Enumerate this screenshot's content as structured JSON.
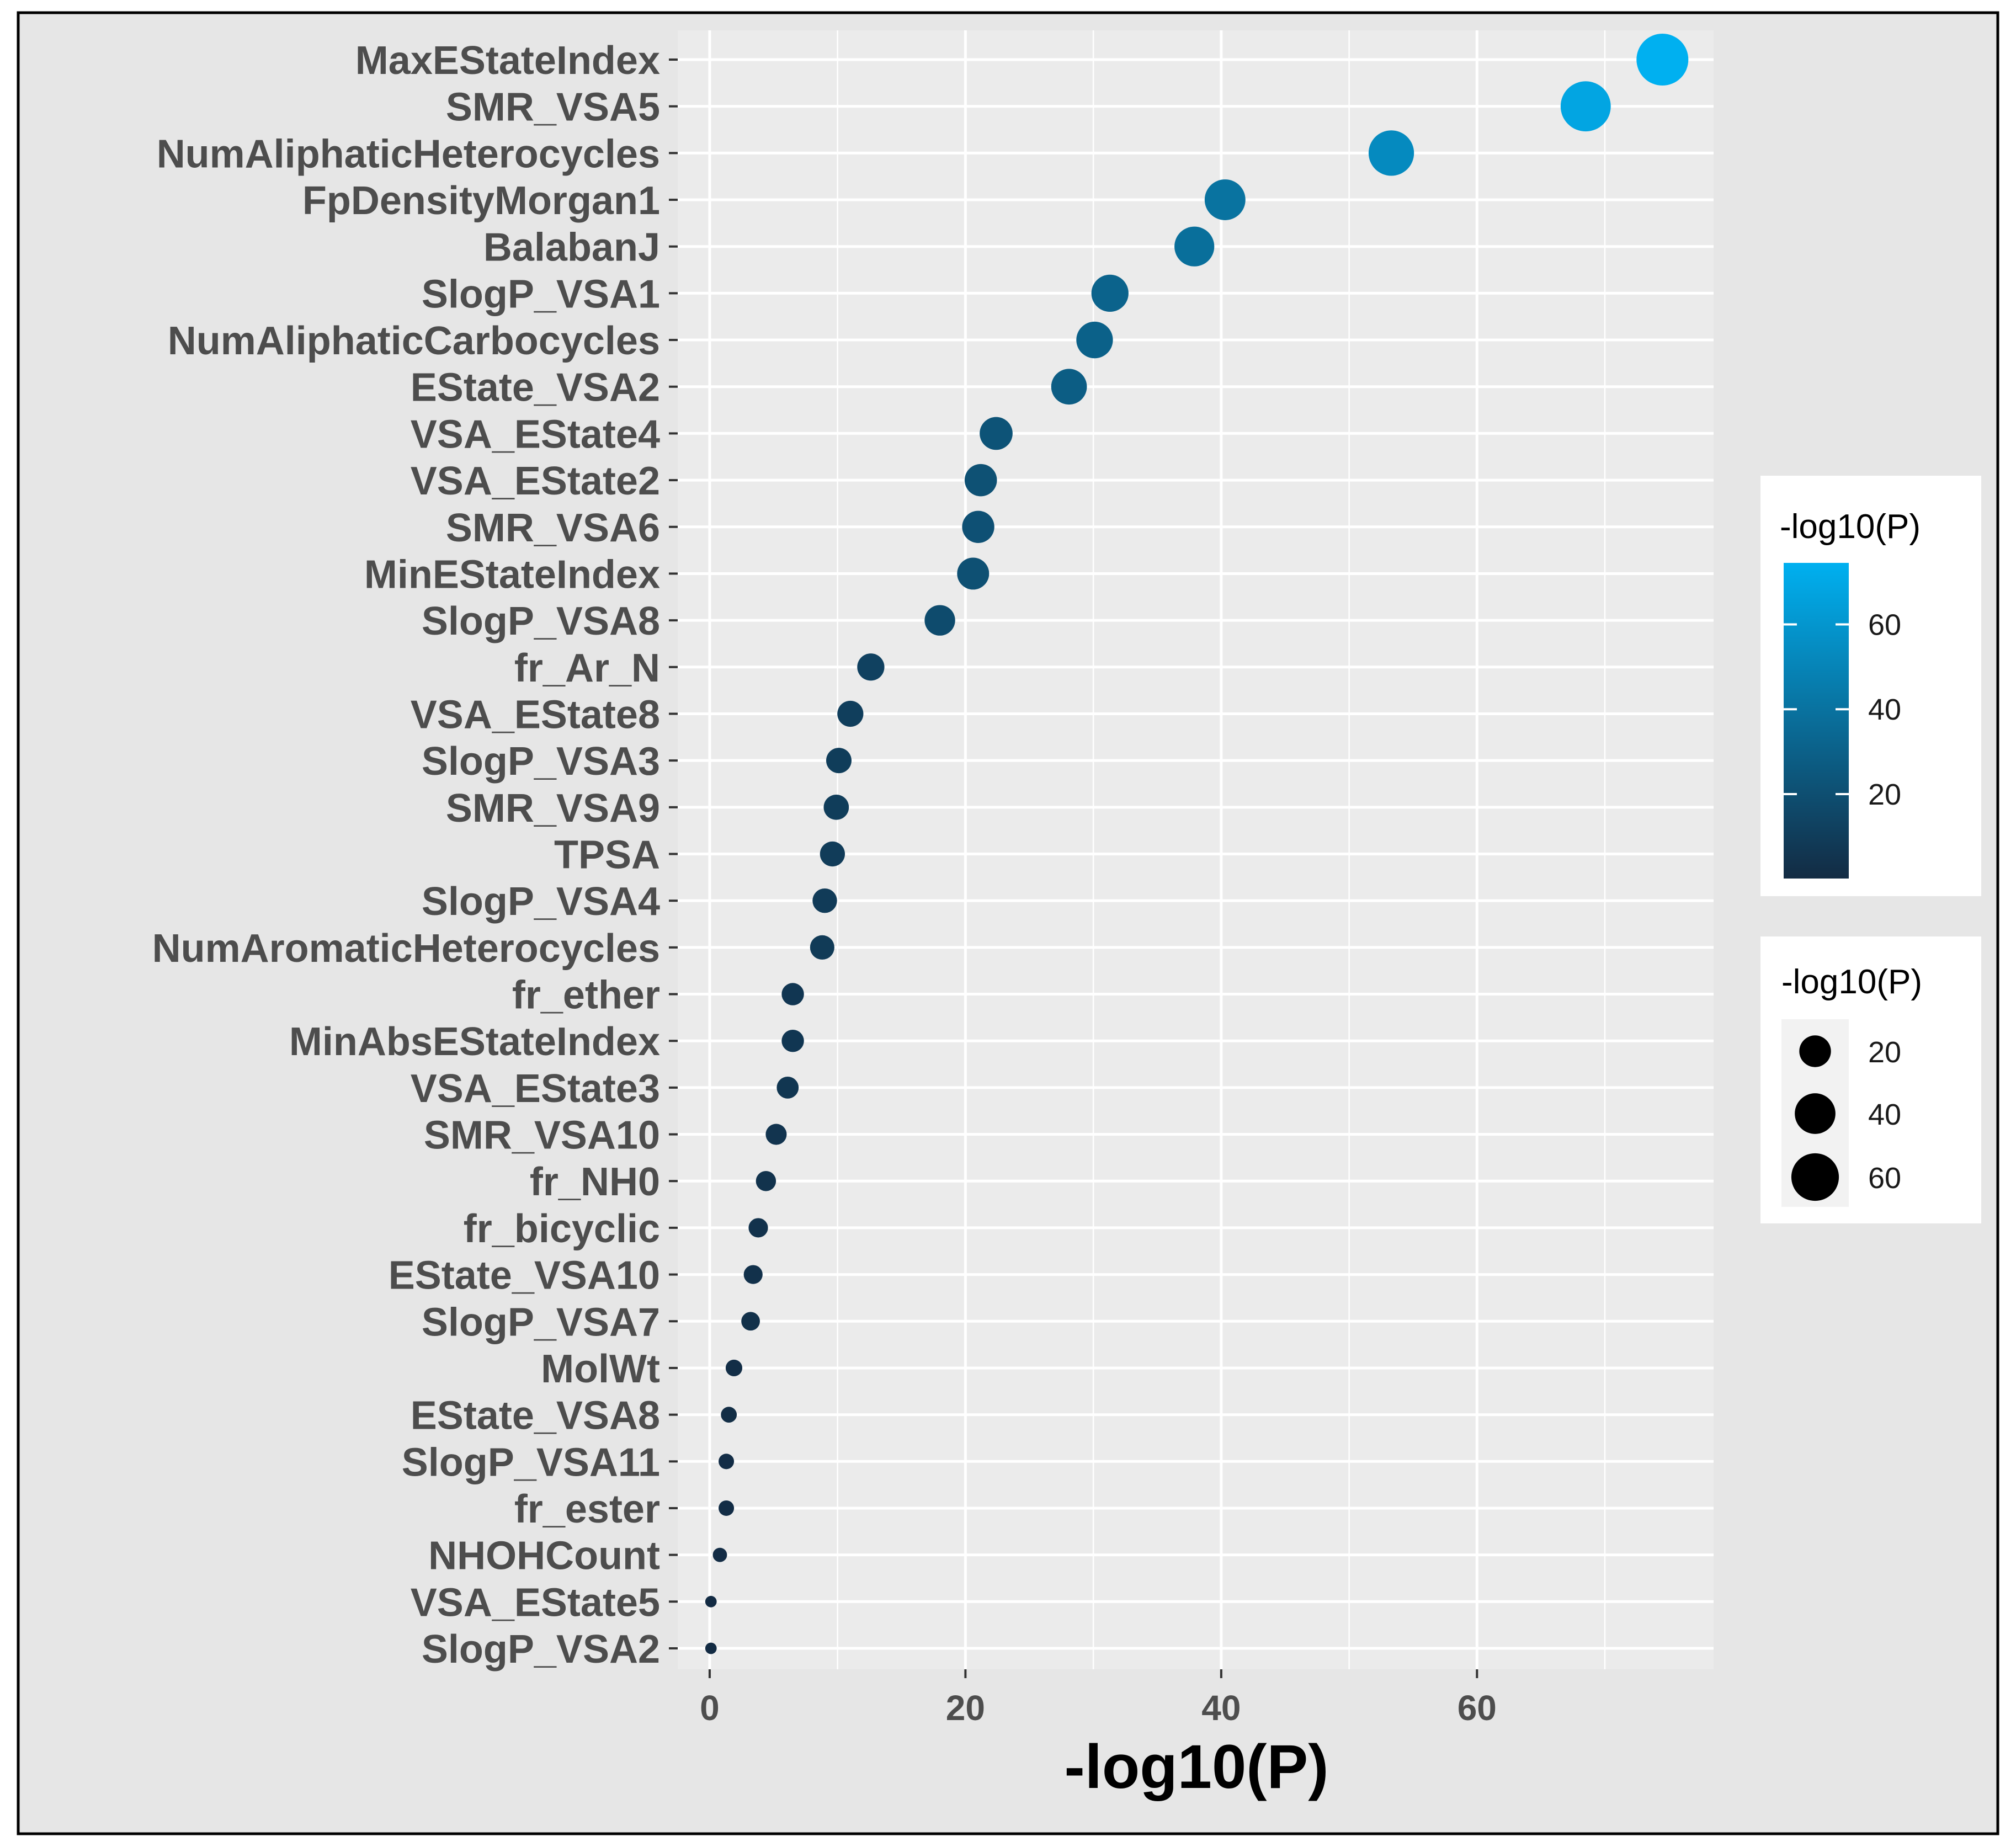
{
  "chart_data": {
    "type": "scatter",
    "xlabel": "-log10(P)",
    "ylabel": "",
    "xlim": [
      -2.5,
      78.5
    ],
    "x_ticks": [
      0,
      20,
      40,
      60
    ],
    "x_tick_labels": [
      "0",
      "20",
      "40",
      "60"
    ],
    "grid": true,
    "categories": [
      "MaxEStateIndex",
      "SMR_VSA5",
      "NumAliphaticHeterocycles",
      "FpDensityMorgan1",
      "BalabanJ",
      "SlogP_VSA1",
      "NumAliphaticCarbocycles",
      "EState_VSA2",
      "VSA_EState4",
      "VSA_EState2",
      "SMR_VSA6",
      "MinEStateIndex",
      "SlogP_VSA8",
      "fr_Ar_N",
      "VSA_EState8",
      "SlogP_VSA3",
      "SMR_VSA9",
      "TPSA",
      "SlogP_VSA4",
      "NumAromaticHeterocycles",
      "fr_ether",
      "MinAbsEStateIndex",
      "VSA_EState3",
      "SMR_VSA10",
      "fr_NH0",
      "fr_bicyclic",
      "EState_VSA10",
      "SlogP_VSA7",
      "MolWt",
      "EState_VSA8",
      "SlogP_VSA11",
      "fr_ester",
      "NHOHCount",
      "VSA_EState5",
      "SlogP_VSA2"
    ],
    "values": [
      74.5,
      68.5,
      53.3,
      40.3,
      37.9,
      31.3,
      30.1,
      28.1,
      22.4,
      21.2,
      21.0,
      20.6,
      18.0,
      12.6,
      11.0,
      10.1,
      9.9,
      9.6,
      9.0,
      8.8,
      6.5,
      6.5,
      6.1,
      5.2,
      4.4,
      3.8,
      3.4,
      3.2,
      1.9,
      1.5,
      1.3,
      1.3,
      0.8,
      0.1,
      0.1
    ],
    "color_scale": {
      "title": "-log10(P)",
      "low": "#132b43",
      "high": "#00b0f0",
      "range": [
        0.1,
        74.5
      ],
      "ticks": [
        20,
        40,
        60
      ],
      "tick_labels": [
        "20",
        "40",
        "60"
      ]
    },
    "size_scale": {
      "title": "-log10(P)",
      "ticks": [
        20,
        40,
        60
      ],
      "tick_labels": [
        "20",
        "40",
        "60"
      ]
    },
    "legend_position": "right"
  }
}
